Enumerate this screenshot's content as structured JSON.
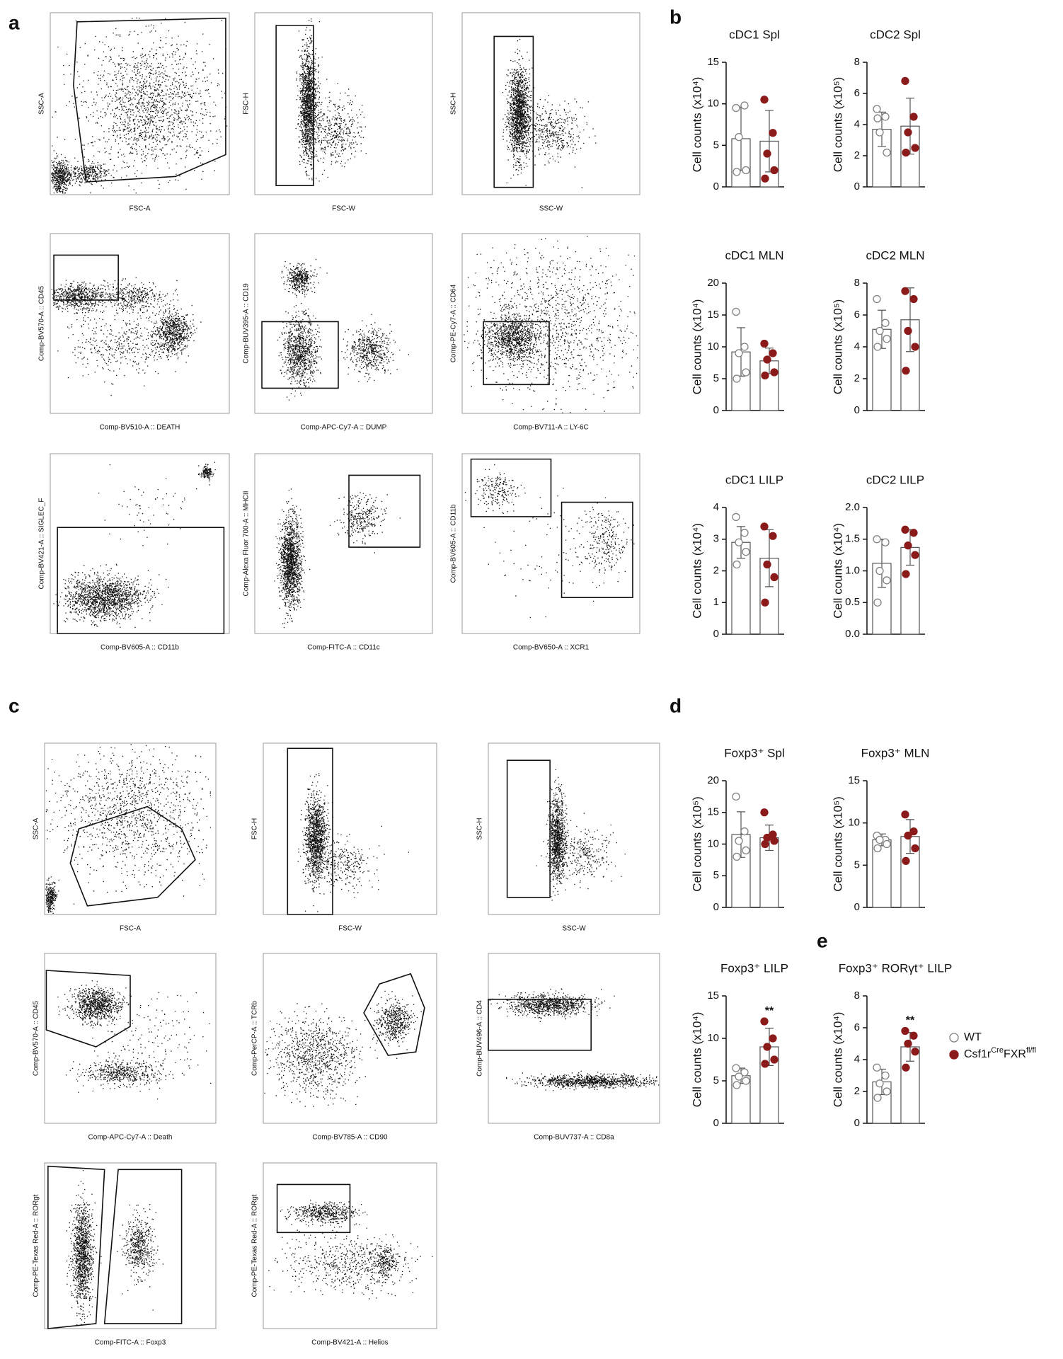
{
  "panel_labels": [
    "a",
    "b",
    "c",
    "d",
    "e"
  ],
  "flow_plots": [
    {
      "x_label": "FSC-A",
      "y_label": "SSC-A"
    },
    {
      "x_label": "FSC-W",
      "y_label": "FSC-H"
    },
    {
      "x_label": "SSC-W",
      "y_label": "SSC-H"
    },
    {
      "x_label": "Comp-BV510-A :: DEATH",
      "y_label": "Comp-BV570-A :: CD45"
    },
    {
      "x_label": "Comp-APC-Cy7-A :: DUMP",
      "y_label": "Comp-BUV395-A :: CD19"
    },
    {
      "x_label": "Comp-BV711-A :: LY-6C",
      "y_label": "Comp-PE-Cy7-A :: CD64"
    },
    {
      "x_label": "Comp-BV605-A :: CD11b",
      "y_label": "Comp-BV421-A :: SIGLEC_F"
    },
    {
      "x_label": "Comp-FITC-A :: CD11c",
      "y_label": "Comp-Alexa Fluor 700-A :: MHCII"
    },
    {
      "x_label": "Comp-BV650-A :: XCR1",
      "y_label": "Comp-BV605-A :: CD11b"
    },
    {
      "x_label": "FSC-A",
      "y_label": "SSC-A"
    },
    {
      "x_label": "FSC-W",
      "y_label": "FSC-H"
    },
    {
      "x_label": "SSC-W",
      "y_label": "SSC-H"
    },
    {
      "x_label": "Comp-APC-Cy7-A :: Death",
      "y_label": "Comp-BV570-A :: CD45"
    },
    {
      "x_label": "Comp-BV785-A :: CD90",
      "y_label": "Comp-PerCP-A :: TCRb"
    },
    {
      "x_label": "Comp-BUV737-A :: CD8a",
      "y_label": "Comp-BUV496-A :: CD4"
    },
    {
      "x_label": "Comp-FITC-A :: Foxp3",
      "y_label": "Comp-PE-Texas Red-A :: RORgt"
    },
    {
      "x_label": "Comp-BV421-A :: Helios",
      "y_label": "Comp-PE-Texas Red-A :: RORgt"
    }
  ],
  "legend": [
    {
      "parts": [
        {
          "text": "WT"
        }
      ],
      "color": "#808080",
      "open": true
    },
    {
      "parts": [
        {
          "text": "Csf1r"
        },
        {
          "text": "Cre",
          "sup": true
        },
        {
          "text": "FXR"
        },
        {
          "text": "fl/fl",
          "sup": true
        }
      ],
      "color": "#8b1a1a",
      "open": false
    }
  ],
  "chart_data": [
    {
      "type": "bar",
      "title": "cDC1 Spl",
      "y_label": "Cell counts (x10⁴)",
      "ylim": [
        0,
        15
      ],
      "yticks": [
        0,
        5,
        10,
        15
      ],
      "series": [
        {
          "values": [
            9.5,
            9.8,
            6,
            2,
            1.8
          ],
          "mean": 5.8,
          "sd": 3.8
        },
        {
          "values": [
            10.5,
            6.5,
            4,
            2,
            1
          ],
          "mean": 5.5,
          "sd": 3.7
        }
      ]
    },
    {
      "type": "bar",
      "title": "cDC2 Spl",
      "y_label": "Cell counts (x10⁵)",
      "ylim": [
        0,
        8
      ],
      "yticks": [
        0,
        2,
        4,
        6,
        8
      ],
      "series": [
        {
          "values": [
            5,
            4.5,
            3.5,
            2.2,
            4.4
          ],
          "mean": 3.7,
          "sd": 1.1
        },
        {
          "values": [
            6.8,
            4.5,
            3.5,
            2.5,
            2.2
          ],
          "mean": 3.9,
          "sd": 1.8
        }
      ]
    },
    {
      "type": "bar",
      "title": "cDC1 MLN",
      "y_label": "Cell counts (x10⁴)",
      "ylim": [
        0,
        20
      ],
      "yticks": [
        0,
        5,
        10,
        15,
        20
      ],
      "series": [
        {
          "values": [
            15.5,
            10,
            9,
            6,
            5
          ],
          "mean": 9.2,
          "sd": 3.8
        },
        {
          "values": [
            10.5,
            9,
            8,
            6,
            5.5
          ],
          "mean": 7.8,
          "sd": 2
        }
      ]
    },
    {
      "type": "bar",
      "title": "cDC2 MLN",
      "y_label": "Cell counts (x10⁵)",
      "ylim": [
        0,
        8
      ],
      "yticks": [
        0,
        2,
        4,
        6,
        8
      ],
      "series": [
        {
          "values": [
            7,
            5.5,
            5,
            4.5,
            4
          ],
          "mean": 5.1,
          "sd": 1.2
        },
        {
          "values": [
            7.5,
            7,
            5,
            4,
            2.5
          ],
          "mean": 5.7,
          "sd": 2
        }
      ]
    },
    {
      "type": "bar",
      "title": "cDC1 LILP",
      "y_label": "Cell counts (x10⁴)",
      "ylim": [
        0,
        4
      ],
      "yticks": [
        0,
        1,
        2,
        3,
        4
      ],
      "series": [
        {
          "values": [
            3.7,
            3.2,
            2.9,
            2.6,
            2.2
          ],
          "mean": 2.9,
          "sd": 0.5
        },
        {
          "values": [
            3.4,
            3.1,
            2.2,
            1.8,
            1
          ],
          "mean": 2.4,
          "sd": 0.9
        }
      ]
    },
    {
      "type": "bar",
      "title": "cDC2 LILP",
      "y_label": "Cell counts (x10⁴)",
      "ylim": [
        0,
        2
      ],
      "yticks": [
        {
          "value": 0,
          "label": "0.0"
        },
        0.5,
        {
          "value": 1,
          "label": "1.0"
        },
        1.5,
        {
          "value": 2,
          "label": "2.0"
        }
      ],
      "series": [
        {
          "values": [
            1.5,
            1.45,
            1,
            0.85,
            0.5
          ],
          "mean": 1.12,
          "sd": 0.38
        },
        {
          "values": [
            1.65,
            1.6,
            1.4,
            1.25,
            0.95
          ],
          "mean": 1.37,
          "sd": 0.28
        }
      ]
    },
    {
      "type": "bar",
      "title": "Foxp3⁺ Spl",
      "y_label": "Cell counts (x10⁵)",
      "ylim": [
        0,
        20
      ],
      "yticks": [
        0,
        5,
        10,
        15,
        20
      ],
      "series": [
        {
          "values": [
            17.5,
            12,
            10.5,
            9,
            8
          ],
          "mean": 11.5,
          "sd": 3.6
        },
        {
          "values": [
            15,
            11.5,
            11,
            10.5,
            10
          ],
          "mean": 11,
          "sd": 2
        }
      ]
    },
    {
      "type": "bar",
      "title": "Foxp3⁺ MLN",
      "y_label": "Cell counts (x10⁵)",
      "ylim": [
        0,
        15
      ],
      "yticks": [
        0,
        5,
        10,
        15
      ],
      "series": [
        {
          "values": [
            8.5,
            8,
            8,
            7.5,
            7
          ],
          "mean": 8,
          "sd": 0.7
        },
        {
          "values": [
            11,
            9,
            8.5,
            7,
            5.5
          ],
          "mean": 8.4,
          "sd": 2
        }
      ]
    },
    {
      "type": "bar",
      "title": "Foxp3⁺ LILP",
      "y_label": "Cell counts (x10⁴)",
      "ylim": [
        0,
        15
      ],
      "yticks": [
        0,
        5,
        10,
        15
      ],
      "annotation": "**",
      "series": [
        {
          "values": [
            6.5,
            6,
            5.5,
            5,
            4.5
          ],
          "mean": 5.6,
          "sd": 0.9
        },
        {
          "values": [
            12,
            10,
            9,
            7.5,
            7
          ],
          "mean": 9,
          "sd": 2.2
        }
      ]
    },
    {
      "type": "bar",
      "title": "Foxp3⁺ RORγt⁺ LILP",
      "y_label": "Cell counts (x10⁴)",
      "ylim": [
        0,
        8
      ],
      "yticks": [
        0,
        2,
        4,
        6,
        8
      ],
      "annotation": "**",
      "series": [
        {
          "values": [
            3.5,
            3,
            2.5,
            2,
            1.6
          ],
          "mean": 2.6,
          "sd": 0.8
        },
        {
          "values": [
            5.8,
            5.5,
            5,
            4.5,
            3.5
          ],
          "mean": 4.8,
          "sd": 0.9
        }
      ]
    }
  ]
}
